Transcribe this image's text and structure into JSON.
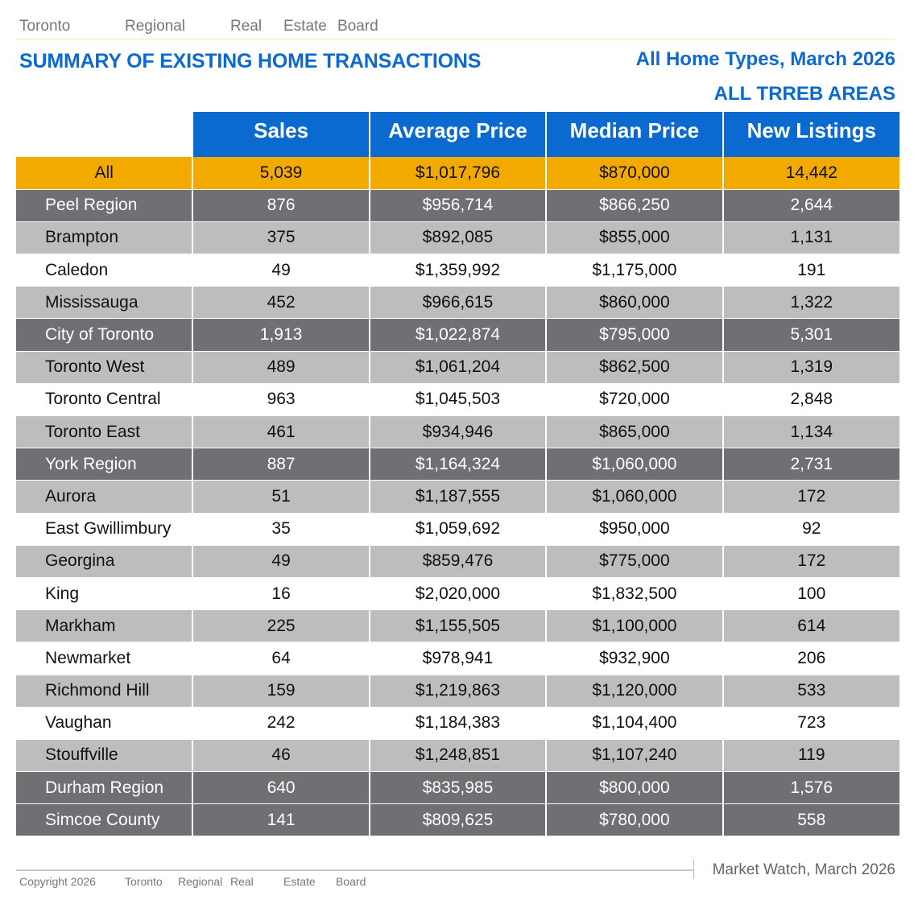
{
  "header": {
    "org_words": [
      "Toronto",
      "Regional",
      "Real",
      "Estate",
      "Board"
    ],
    "title": "SUMMARY OF EXISTING HOME TRANSACTIONS",
    "subtitle1": "All Home Types, March 2026",
    "subtitle2": "ALL TRREB AREAS"
  },
  "colors": {
    "accent_blue": "#0a6ad0",
    "all_row": "#f2a900",
    "region_row": "#707074",
    "light_row": "#bdbdbd"
  },
  "table": {
    "columns": [
      "Sales",
      "Average Price",
      "Median Price",
      "New Listings"
    ],
    "rows": [
      {
        "type": "all",
        "area": "All",
        "sales": "5,039",
        "avg": "$1,017,796",
        "median": "$870,000",
        "listings": "14,442"
      },
      {
        "type": "dark",
        "area": "Peel Region",
        "sales": "876",
        "avg": "$956,714",
        "median": "$866,250",
        "listings": "2,644"
      },
      {
        "type": "light",
        "area": "Brampton",
        "sales": "375",
        "avg": "$892,085",
        "median": "$855,000",
        "listings": "1,131"
      },
      {
        "type": "white",
        "area": "Caledon",
        "sales": "49",
        "avg": "$1,359,992",
        "median": "$1,175,000",
        "listings": "191"
      },
      {
        "type": "light",
        "area": "Mississauga",
        "sales": "452",
        "avg": "$966,615",
        "median": "$860,000",
        "listings": "1,322"
      },
      {
        "type": "dark",
        "area": "City of Toronto",
        "sales": "1,913",
        "avg": "$1,022,874",
        "median": "$795,000",
        "listings": "5,301"
      },
      {
        "type": "light",
        "area": "Toronto West",
        "sales": "489",
        "avg": "$1,061,204",
        "median": "$862,500",
        "listings": "1,319"
      },
      {
        "type": "white",
        "area": "Toronto Central",
        "sales": "963",
        "avg": "$1,045,503",
        "median": "$720,000",
        "listings": "2,848"
      },
      {
        "type": "light",
        "area": "Toronto East",
        "sales": "461",
        "avg": "$934,946",
        "median": "$865,000",
        "listings": "1,134"
      },
      {
        "type": "dark",
        "area": "York Region",
        "sales": "887",
        "avg": "$1,164,324",
        "median": "$1,060,000",
        "listings": "2,731"
      },
      {
        "type": "light",
        "area": "Aurora",
        "sales": "51",
        "avg": "$1,187,555",
        "median": "$1,060,000",
        "listings": "172"
      },
      {
        "type": "white",
        "area": "East Gwillimbury",
        "sales": "35",
        "avg": "$1,059,692",
        "median": "$950,000",
        "listings": "92"
      },
      {
        "type": "light",
        "area": "Georgina",
        "sales": "49",
        "avg": "$859,476",
        "median": "$775,000",
        "listings": "172"
      },
      {
        "type": "white",
        "area": "King",
        "sales": "16",
        "avg": "$2,020,000",
        "median": "$1,832,500",
        "listings": "100"
      },
      {
        "type": "light",
        "area": "Markham",
        "sales": "225",
        "avg": "$1,155,505",
        "median": "$1,100,000",
        "listings": "614"
      },
      {
        "type": "white",
        "area": "Newmarket",
        "sales": "64",
        "avg": "$978,941",
        "median": "$932,900",
        "listings": "206"
      },
      {
        "type": "light",
        "area": "Richmond Hill",
        "sales": "159",
        "avg": "$1,219,863",
        "median": "$1,120,000",
        "listings": "533"
      },
      {
        "type": "white",
        "area": "Vaughan",
        "sales": "242",
        "avg": "$1,184,383",
        "median": "$1,104,400",
        "listings": "723"
      },
      {
        "type": "light",
        "area": "Stouffville",
        "sales": "46",
        "avg": "$1,248,851",
        "median": "$1,107,240",
        "listings": "119"
      },
      {
        "type": "dark",
        "area": "Durham Region",
        "sales": "640",
        "avg": "$835,985",
        "median": "$800,000",
        "listings": "1,576"
      },
      {
        "type": "dark",
        "area": "Simcoe County",
        "sales": "141",
        "avg": "$809,625",
        "median": "$780,000",
        "listings": "558"
      }
    ]
  },
  "footer": {
    "market_watch": "Market Watch, March 2026",
    "copyright_words": [
      "Copyright 2026",
      "Toronto",
      "Regional",
      "Real",
      "Estate",
      "Board"
    ]
  }
}
